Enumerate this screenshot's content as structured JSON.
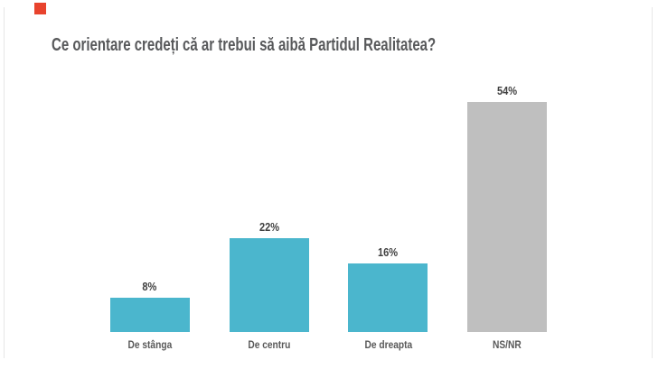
{
  "title": "Ce orientare credeți că ar trebui să aibă Partidul Realitatea?",
  "click_marker": {
    "color": "#e8432d"
  },
  "colors": {
    "background": "#ffffff",
    "title_text": "#58595b",
    "value_text": "#404040",
    "category_text": "#595959",
    "teal_bar": "#4bb6cd",
    "gray_bar": "#bfbfbf",
    "edge_line": "#e7e7e7"
  },
  "chart_data": {
    "type": "bar",
    "title": "Ce orientare credeți că ar trebui să aibă Partidul Realitatea?",
    "categories": [
      "De stânga",
      "De centru",
      "De dreapta",
      "NS/NR"
    ],
    "values": [
      8,
      22,
      16,
      54
    ],
    "value_labels": [
      "8%",
      "22%",
      "16%",
      "54%"
    ],
    "bar_colors": [
      "#4bb6cd",
      "#4bb6cd",
      "#4bb6cd",
      "#bfbfbf"
    ],
    "unit": "%",
    "ylim": [
      0,
      60
    ],
    "xlabel": "",
    "ylabel": "",
    "grid": false,
    "legend": "none",
    "value_labels_position": "above-bars",
    "axes_hidden": true
  }
}
